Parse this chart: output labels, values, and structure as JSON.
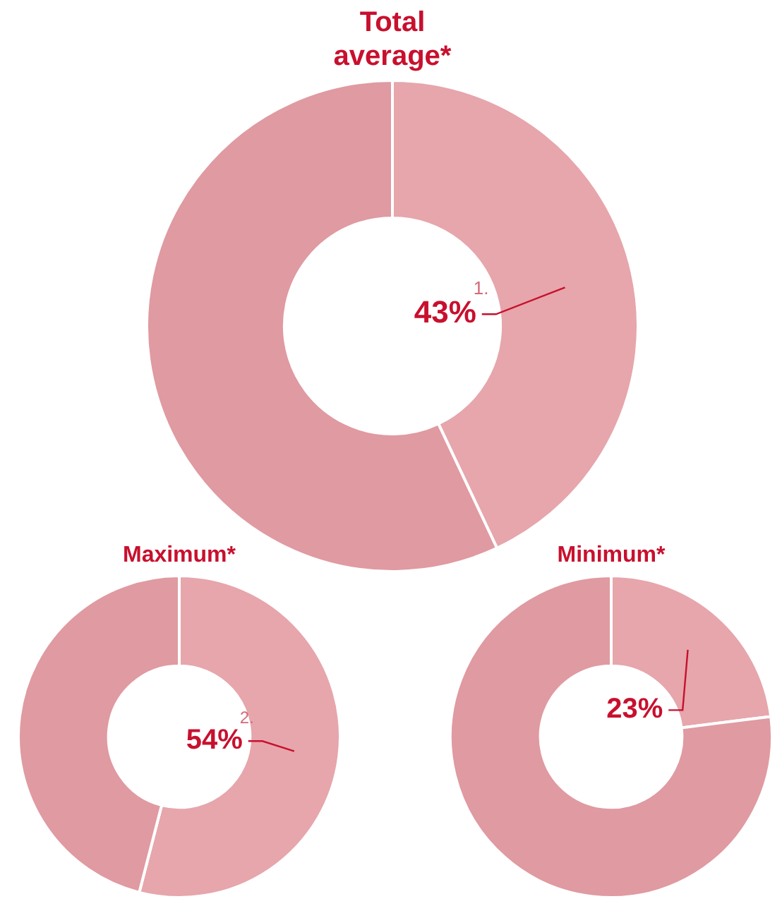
{
  "chart_data": [
    {
      "type": "donut",
      "title": "Total average*",
      "categories": [
        null,
        null
      ],
      "values": [
        43,
        57
      ],
      "colors": [
        "#e6a6ac",
        "#e09aa1"
      ],
      "value_labels": [
        "43%",
        null
      ],
      "annotations": [
        "1."
      ],
      "legend": false
    },
    {
      "type": "donut",
      "title": "Maximum*",
      "categories": [
        null,
        null
      ],
      "values": [
        54,
        46
      ],
      "colors": [
        "#e6a6ac",
        "#e09aa1"
      ],
      "value_labels": [
        "54%",
        null
      ],
      "annotations": [
        "2."
      ],
      "legend": false
    },
    {
      "type": "donut",
      "title": "Minimum*",
      "categories": [
        null,
        null
      ],
      "values": [
        23,
        77
      ],
      "colors": [
        "#e6a6ac",
        "#e09aa1"
      ],
      "value_labels": [
        "23%",
        null
      ],
      "legend": false
    }
  ]
}
